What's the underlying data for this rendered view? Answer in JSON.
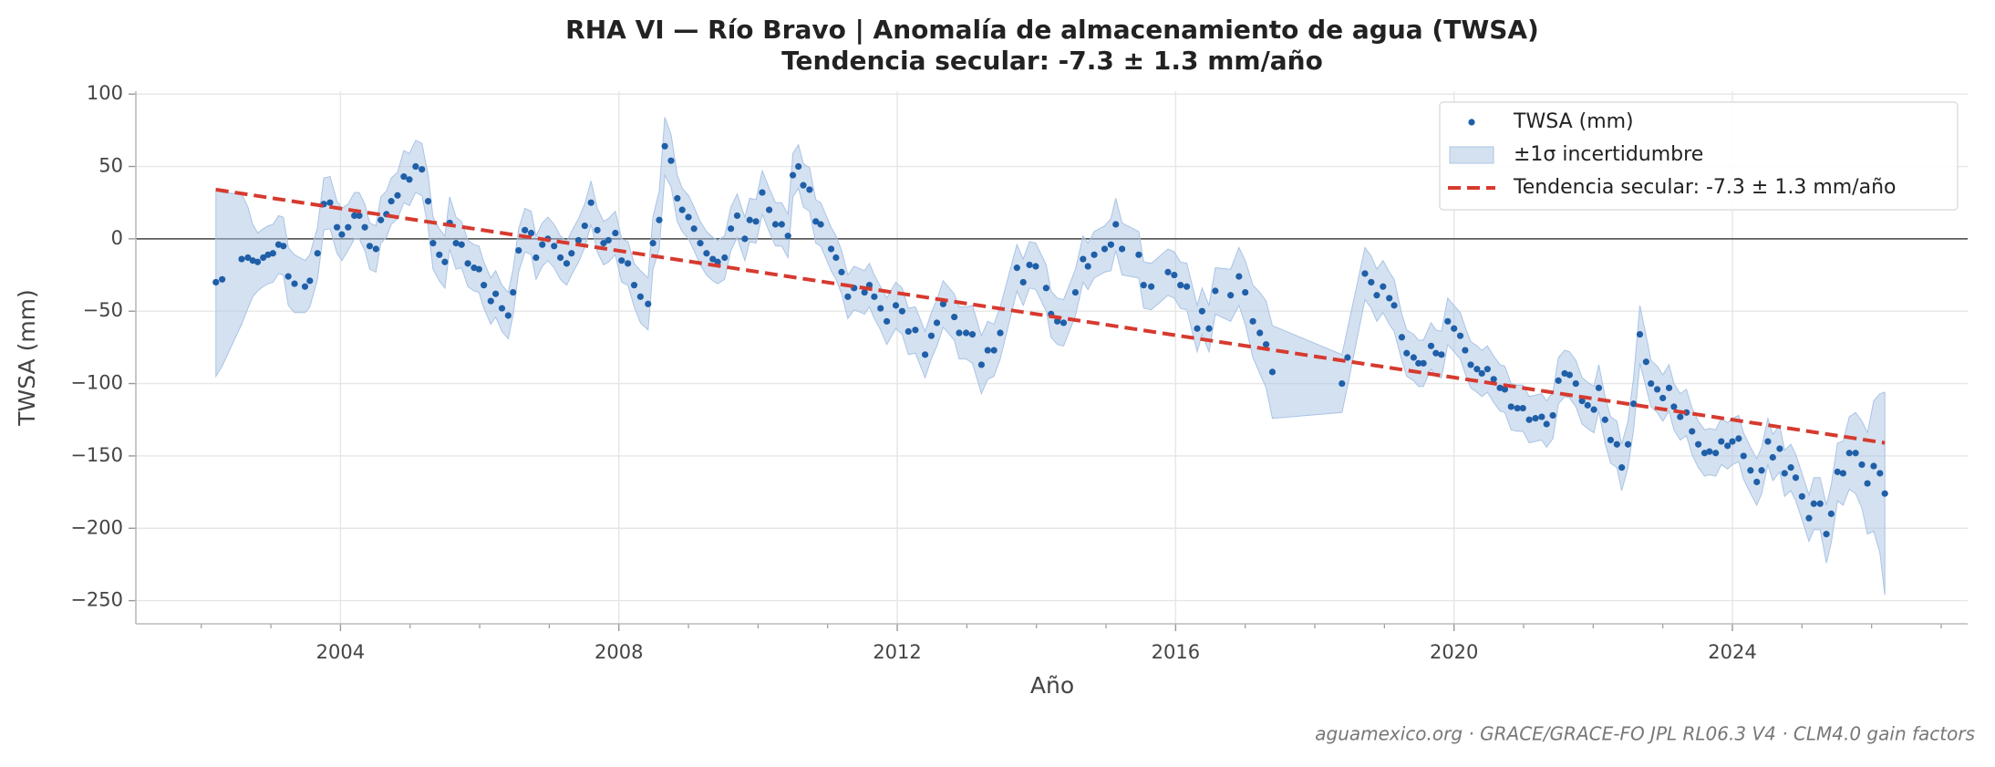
{
  "chart_data": {
    "type": "scatter",
    "title": "RHA VI — Río Bravo  |  Anomalía de almacenamiento de agua (TWSA)",
    "subtitle": "Tendencia secular: -7.3 ± 1.3 mm/año",
    "x_label": "Año",
    "y_label": "TWSA (mm)",
    "source": "aguamexico.org · GRACE/GRACE-FO JPL RL06.3 V4 · CLM4.0 gain factors",
    "xlim": [
      2001.06,
      2027.38
    ],
    "ylim": [
      -266,
      102
    ],
    "xticks": [
      2004,
      2008,
      2012,
      2016,
      2020,
      2024
    ],
    "xminor": [
      2002,
      2003,
      2005,
      2006,
      2007,
      2009,
      2010,
      2011,
      2013,
      2014,
      2015,
      2017,
      2018,
      2019,
      2021,
      2022,
      2023,
      2025,
      2026,
      2027
    ],
    "yticks": [
      100,
      50,
      0,
      {
        "value": -50,
        "label": "−50"
      },
      {
        "value": -100,
        "label": "−100"
      },
      {
        "value": -150,
        "label": "−150"
      },
      {
        "value": -200,
        "label": "−200"
      },
      {
        "value": -250,
        "label": "−250"
      }
    ],
    "grid": true,
    "hline": 0,
    "legend": "upper right",
    "series": [
      {
        "name": "TWSA (mm)",
        "color": "#1f5fa8",
        "band": {
          "name": "±1σ incertidumbre",
          "color": "#aac4e4"
        },
        "x": [
          2002.21,
          2002.3,
          2002.58,
          2002.67,
          2002.74,
          2002.81,
          2002.89,
          2002.96,
          2003.03,
          2003.11,
          2003.18,
          2003.25,
          2003.34,
          2003.49,
          2003.56,
          2003.67,
          2003.76,
          2003.85,
          2003.95,
          2004.02,
          2004.11,
          2004.2,
          2004.27,
          2004.35,
          2004.42,
          2004.51,
          2004.58,
          2004.66,
          2004.73,
          2004.82,
          2004.91,
          2004.99,
          2005.08,
          2005.17,
          2005.26,
          2005.33,
          2005.42,
          2005.5,
          2005.57,
          2005.66,
          2005.74,
          2005.83,
          2005.92,
          2005.99,
          2006.06,
          2006.16,
          2006.23,
          2006.32,
          2006.41,
          2006.48,
          2006.56,
          2006.65,
          2006.74,
          2006.81,
          2006.9,
          2006.98,
          2007.07,
          2007.16,
          2007.25,
          2007.32,
          2007.42,
          2007.51,
          2007.6,
          2007.69,
          2007.78,
          2007.85,
          2007.95,
          2008.04,
          2008.13,
          2008.22,
          2008.31,
          2008.42,
          2008.49,
          2008.58,
          2008.66,
          2008.75,
          2008.84,
          2008.91,
          2009.0,
          2009.08,
          2009.17,
          2009.26,
          2009.35,
          2009.42,
          2009.52,
          2009.61,
          2009.7,
          2009.81,
          2009.88,
          2009.97,
          2010.06,
          2010.16,
          2010.25,
          2010.34,
          2010.43,
          2010.5,
          2010.58,
          2010.65,
          2010.74,
          2010.83,
          2010.9,
          2011.05,
          2011.12,
          2011.2,
          2011.29,
          2011.38,
          2011.53,
          2011.6,
          2011.67,
          2011.76,
          2011.85,
          2011.98,
          2012.07,
          2012.16,
          2012.26,
          2012.4,
          2012.49,
          2012.57,
          2012.66,
          2012.82,
          2012.89,
          2012.99,
          2013.08,
          2013.21,
          2013.3,
          2013.39,
          2013.48,
          2013.72,
          2013.81,
          2013.9,
          2013.99,
          2014.14,
          2014.21,
          2014.3,
          2014.39,
          2014.56,
          2014.67,
          2014.74,
          2014.83,
          2014.98,
          2015.07,
          2015.14,
          2015.23,
          2015.47,
          2015.54,
          2015.65,
          2015.89,
          2015.98,
          2016.07,
          2016.16,
          2016.31,
          2016.38,
          2016.48,
          2016.57,
          2016.79,
          2016.91,
          2017.0,
          2017.11,
          2017.21,
          2017.3,
          2017.39,
          2018.39,
          2018.47,
          2018.72,
          2018.81,
          2018.89,
          2018.98,
          2019.07,
          2019.14,
          2019.25,
          2019.32,
          2019.42,
          2019.49,
          2019.56,
          2019.67,
          2019.74,
          2019.82,
          2019.91,
          2020.0,
          2020.09,
          2020.16,
          2020.24,
          2020.33,
          2020.4,
          2020.48,
          2020.57,
          2020.66,
          2020.73,
          2020.82,
          2020.91,
          2020.99,
          2021.08,
          2021.17,
          2021.26,
          2021.33,
          2021.42,
          2021.5,
          2021.59,
          2021.66,
          2021.75,
          2021.84,
          2021.92,
          2022.01,
          2022.08,
          2022.17,
          2022.25,
          2022.34,
          2022.41,
          2022.5,
          2022.58,
          2022.67,
          2022.76,
          2022.83,
          2022.92,
          2023.0,
          2023.09,
          2023.16,
          2023.25,
          2023.34,
          2023.42,
          2023.51,
          2023.6,
          2023.67,
          2023.76,
          2023.84,
          2023.93,
          2024.0,
          2024.09,
          2024.16,
          2024.26,
          2024.35,
          2024.42,
          2024.51,
          2024.58,
          2024.68,
          2024.75,
          2024.84,
          2024.91,
          2025.0,
          2025.1,
          2025.17,
          2025.26,
          2025.35,
          2025.42,
          2025.51,
          2025.59,
          2025.68,
          2025.77,
          2025.86,
          2025.94,
          2026.03,
          2026.12,
          2026.19
        ],
        "values": [
          -30,
          -28,
          -14,
          -13,
          -15,
          -16,
          -13,
          -11,
          -10,
          -4,
          -5,
          -26,
          -31,
          -33,
          -29,
          -10,
          24,
          25,
          8,
          3,
          8,
          16,
          16,
          8,
          -5,
          -7,
          13,
          17,
          26,
          30,
          43,
          41,
          50,
          48,
          26,
          -3,
          -11,
          -16,
          11,
          -3,
          -4,
          -17,
          -20,
          -21,
          -32,
          -43,
          -38,
          -48,
          -53,
          -37,
          -8,
          6,
          4,
          -13,
          -4,
          0,
          -5,
          -13,
          -17,
          -10,
          -1,
          9,
          25,
          6,
          -3,
          -1,
          4,
          -15,
          -17,
          -32,
          -40,
          -45,
          -3,
          13,
          64,
          54,
          28,
          20,
          15,
          7,
          -3,
          -10,
          -14,
          -16,
          -13,
          7,
          16,
          0,
          13,
          12,
          32,
          20,
          10,
          10,
          2,
          44,
          50,
          37,
          34,
          12,
          10,
          -7,
          -13,
          -23,
          -40,
          -34,
          -37,
          -32,
          -40,
          -48,
          -57,
          -46,
          -50,
          -64,
          -63,
          -80,
          -67,
          -58,
          -45,
          -54,
          -65,
          -65,
          -66,
          -87,
          -77,
          -77,
          -65,
          -20,
          -30,
          -18,
          -19,
          -34,
          -52,
          -57,
          -58,
          -37,
          -14,
          -19,
          -11,
          -7,
          -4,
          10,
          -7,
          -11,
          -32,
          -33,
          -23,
          -25,
          -32,
          -33,
          -62,
          -50,
          -62,
          -36,
          -39,
          -26,
          -37,
          -57,
          -65,
          -73,
          -92,
          -100,
          -82,
          -24,
          -30,
          -39,
          -33,
          -41,
          -46,
          -68,
          -79,
          -82,
          -86,
          -86,
          -74,
          -79,
          -80,
          -57,
          -62,
          -67,
          -77,
          -87,
          -90,
          -93,
          -90,
          -97,
          -103,
          -104,
          -116,
          -117,
          -117,
          -125,
          -124,
          -123,
          -128,
          -122,
          -98,
          -93,
          -94,
          -100,
          -112,
          -115,
          -118,
          -103,
          -125,
          -139,
          -142,
          -158,
          -142,
          -114,
          -66,
          -85,
          -100,
          -104,
          -110,
          -103,
          -116,
          -123,
          -120,
          -133,
          -142,
          -148,
          -147,
          -148,
          -140,
          -143,
          -140,
          -138,
          -150,
          -160,
          -168,
          -160,
          -140,
          -151,
          -145,
          -162,
          -158,
          -165,
          -178,
          -193,
          -183,
          -183,
          -204,
          -190,
          -161,
          -162,
          -148,
          -148,
          -156,
          -169,
          -157,
          -162,
          -176
        ],
        "sigma": [
          65,
          60,
          45,
          35,
          25,
          20,
          20,
          20,
          20,
          20,
          20,
          20,
          20,
          18,
          18,
          18,
          18,
          18,
          18,
          18,
          16,
          16,
          16,
          16,
          16,
          16,
          16,
          16,
          16,
          16,
          18,
          18,
          18,
          18,
          18,
          18,
          18,
          18,
          18,
          18,
          16,
          16,
          16,
          16,
          16,
          16,
          16,
          16,
          16,
          16,
          15,
          15,
          15,
          15,
          15,
          15,
          15,
          15,
          15,
          15,
          15,
          15,
          15,
          15,
          15,
          15,
          15,
          15,
          15,
          15,
          18,
          18,
          18,
          20,
          20,
          18,
          16,
          15,
          15,
          15,
          15,
          15,
          15,
          15,
          15,
          15,
          15,
          15,
          15,
          15,
          15,
          15,
          15,
          15,
          15,
          15,
          15,
          15,
          15,
          15,
          15,
          15,
          15,
          15,
          15,
          15,
          15,
          15,
          15,
          15,
          16,
          16,
          16,
          16,
          16,
          16,
          16,
          16,
          16,
          16,
          18,
          18,
          20,
          20,
          20,
          18,
          18,
          16,
          16,
          16,
          16,
          16,
          16,
          16,
          16,
          16,
          16,
          16,
          16,
          16,
          18,
          18,
          18,
          16,
          16,
          16,
          16,
          16,
          16,
          16,
          16,
          16,
          16,
          16,
          18,
          20,
          22,
          25,
          28,
          30,
          32,
          20,
          20,
          18,
          18,
          18,
          18,
          18,
          18,
          16,
          16,
          16,
          16,
          16,
          16,
          16,
          16,
          16,
          16,
          16,
          16,
          16,
          16,
          16,
          16,
          16,
          16,
          16,
          16,
          16,
          16,
          16,
          16,
          16,
          16,
          16,
          16,
          16,
          16,
          16,
          16,
          16,
          16,
          16,
          16,
          16,
          16,
          16,
          16,
          18,
          20,
          18,
          16,
          16,
          16,
          16,
          16,
          16,
          16,
          16,
          16,
          16,
          16,
          16,
          16,
          16,
          16,
          16,
          16,
          16,
          16,
          16,
          16,
          16,
          16,
          16,
          16,
          16,
          16,
          16,
          18,
          18,
          20,
          20,
          20,
          22,
          25,
          28,
          30,
          35,
          45,
          55,
          70
        ]
      },
      {
        "name": "Tendencia secular: -7.3 ± 1.3 mm/año",
        "color": "#d63a2f",
        "style": "dashed",
        "x": [
          2002.21,
          2026.19
        ],
        "values": [
          34,
          -141
        ]
      }
    ]
  }
}
